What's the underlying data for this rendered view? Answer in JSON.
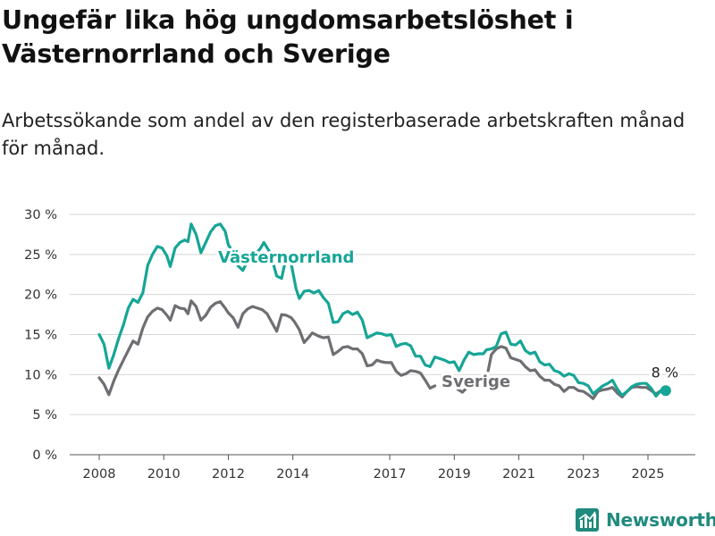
{
  "title": "Ungefär lika hög ungdomsarbetslöshet i Västernorrland och Sverige",
  "subtitle": "Arbetssökande som andel av den registerbaserade arbetskraften månad för månad.",
  "brand": "Newsworthy",
  "colors": {
    "vasternorrland": "#16a596",
    "sverige": "#6e6e73",
    "grid": "#d6d6d6",
    "axis": "#555555",
    "brand": "#1f8a7d"
  },
  "chart_data": {
    "type": "line",
    "yticks": [
      "0 %",
      "5 %",
      "10 %",
      "15 %",
      "20 %",
      "25 %",
      "30 %"
    ],
    "xticks": [
      "2008",
      "2010",
      "2012",
      "2014",
      "2017",
      "2019",
      "2021",
      "2023",
      "2025"
    ],
    "ylim": [
      0,
      30
    ],
    "xlim": [
      2007.5,
      2026.3
    ],
    "grid": true,
    "end_label": "8 %",
    "series": [
      {
        "name": "Västernorrland",
        "label_position": "inline",
        "points": [
          [
            2008.0,
            15.0
          ],
          [
            2008.15,
            13.8
          ],
          [
            2008.3,
            10.8
          ],
          [
            2008.45,
            12.5
          ],
          [
            2008.6,
            14.5
          ],
          [
            2008.75,
            16.2
          ],
          [
            2008.9,
            18.3
          ],
          [
            2009.05,
            19.4
          ],
          [
            2009.2,
            19.0
          ],
          [
            2009.35,
            20.2
          ],
          [
            2009.5,
            23.6
          ],
          [
            2009.65,
            25.0
          ],
          [
            2009.8,
            26.0
          ],
          [
            2009.95,
            25.8
          ],
          [
            2010.1,
            24.8
          ],
          [
            2010.2,
            23.5
          ],
          [
            2010.35,
            25.8
          ],
          [
            2010.5,
            26.5
          ],
          [
            2010.65,
            26.8
          ],
          [
            2010.75,
            26.6
          ],
          [
            2010.85,
            28.8
          ],
          [
            2011.0,
            27.5
          ],
          [
            2011.15,
            25.2
          ],
          [
            2011.3,
            26.5
          ],
          [
            2011.45,
            27.8
          ],
          [
            2011.6,
            28.6
          ],
          [
            2011.75,
            28.8
          ],
          [
            2011.9,
            27.9
          ],
          [
            2012.0,
            26.2
          ],
          [
            2012.15,
            25.3
          ],
          [
            2012.3,
            23.6
          ],
          [
            2012.45,
            23.0
          ],
          [
            2012.6,
            24.2
          ],
          [
            2012.75,
            24.6
          ],
          [
            2012.9,
            25.3
          ],
          [
            2013.0,
            25.8
          ],
          [
            2013.1,
            26.5
          ],
          [
            2013.3,
            25.2
          ],
          [
            2013.5,
            22.3
          ],
          [
            2013.65,
            22.0
          ],
          [
            2013.8,
            24.8
          ],
          [
            2013.95,
            23.8
          ],
          [
            2014.1,
            20.7
          ],
          [
            2014.2,
            19.5
          ],
          [
            2014.35,
            20.4
          ],
          [
            2014.5,
            20.5
          ],
          [
            2014.65,
            20.2
          ],
          [
            2014.8,
            20.5
          ],
          [
            2014.95,
            19.6
          ],
          [
            2015.1,
            18.9
          ],
          [
            2015.25,
            16.5
          ],
          [
            2015.4,
            16.6
          ],
          [
            2015.55,
            17.6
          ],
          [
            2015.7,
            17.9
          ],
          [
            2015.85,
            17.5
          ],
          [
            2016.0,
            17.8
          ],
          [
            2016.15,
            16.8
          ],
          [
            2016.3,
            14.6
          ],
          [
            2016.45,
            14.9
          ],
          [
            2016.6,
            15.2
          ],
          [
            2016.75,
            15.1
          ],
          [
            2016.9,
            14.9
          ],
          [
            2017.05,
            15.0
          ],
          [
            2017.2,
            13.5
          ],
          [
            2017.35,
            13.8
          ],
          [
            2017.5,
            13.9
          ],
          [
            2017.65,
            13.6
          ],
          [
            2017.8,
            12.3
          ],
          [
            2017.95,
            12.3
          ],
          [
            2018.1,
            11.2
          ],
          [
            2018.25,
            11.0
          ],
          [
            2018.4,
            12.2
          ],
          [
            2018.55,
            12.0
          ],
          [
            2018.7,
            11.8
          ],
          [
            2018.85,
            11.5
          ],
          [
            2019.0,
            11.6
          ],
          [
            2019.15,
            10.5
          ],
          [
            2019.3,
            11.8
          ],
          [
            2019.45,
            12.8
          ],
          [
            2019.6,
            12.5
          ],
          [
            2019.75,
            12.6
          ],
          [
            2019.9,
            12.6
          ],
          [
            2020.0,
            13.1
          ],
          [
            2020.15,
            13.2
          ],
          [
            2020.3,
            13.5
          ],
          [
            2020.45,
            15.1
          ],
          [
            2020.6,
            15.3
          ],
          [
            2020.75,
            13.8
          ],
          [
            2020.9,
            13.7
          ],
          [
            2021.05,
            14.2
          ],
          [
            2021.2,
            13.0
          ],
          [
            2021.35,
            12.6
          ],
          [
            2021.5,
            12.8
          ],
          [
            2021.65,
            11.6
          ],
          [
            2021.8,
            11.2
          ],
          [
            2021.95,
            11.3
          ],
          [
            2022.1,
            10.5
          ],
          [
            2022.25,
            10.3
          ],
          [
            2022.4,
            9.8
          ],
          [
            2022.55,
            10.1
          ],
          [
            2022.7,
            9.9
          ],
          [
            2022.85,
            9.0
          ],
          [
            2023.0,
            8.9
          ],
          [
            2023.15,
            8.6
          ],
          [
            2023.3,
            7.6
          ],
          [
            2023.45,
            8.1
          ],
          [
            2023.6,
            8.6
          ],
          [
            2023.75,
            8.9
          ],
          [
            2023.9,
            9.3
          ],
          [
            2024.05,
            8.2
          ],
          [
            2024.2,
            7.4
          ],
          [
            2024.35,
            7.9
          ],
          [
            2024.5,
            8.5
          ],
          [
            2024.65,
            8.8
          ],
          [
            2024.8,
            8.9
          ],
          [
            2024.95,
            8.9
          ],
          [
            2025.1,
            8.3
          ],
          [
            2025.25,
            7.3
          ],
          [
            2025.4,
            8.0
          ],
          [
            2025.55,
            8.0
          ]
        ]
      },
      {
        "name": "Sverige",
        "label_position": "inline",
        "points": [
          [
            2008.0,
            9.6
          ],
          [
            2008.15,
            8.8
          ],
          [
            2008.3,
            7.5
          ],
          [
            2008.45,
            9.2
          ],
          [
            2008.6,
            10.6
          ],
          [
            2008.75,
            11.8
          ],
          [
            2008.9,
            13.0
          ],
          [
            2009.05,
            14.2
          ],
          [
            2009.2,
            13.8
          ],
          [
            2009.35,
            15.8
          ],
          [
            2009.5,
            17.2
          ],
          [
            2009.65,
            17.9
          ],
          [
            2009.8,
            18.3
          ],
          [
            2009.95,
            18.1
          ],
          [
            2010.1,
            17.4
          ],
          [
            2010.2,
            16.8
          ],
          [
            2010.35,
            18.6
          ],
          [
            2010.5,
            18.3
          ],
          [
            2010.65,
            18.2
          ],
          [
            2010.75,
            17.6
          ],
          [
            2010.85,
            19.2
          ],
          [
            2011.0,
            18.5
          ],
          [
            2011.15,
            16.8
          ],
          [
            2011.3,
            17.4
          ],
          [
            2011.45,
            18.4
          ],
          [
            2011.6,
            18.9
          ],
          [
            2011.75,
            19.1
          ],
          [
            2011.9,
            18.3
          ],
          [
            2012.0,
            17.7
          ],
          [
            2012.15,
            17.1
          ],
          [
            2012.3,
            15.9
          ],
          [
            2012.45,
            17.6
          ],
          [
            2012.6,
            18.2
          ],
          [
            2012.75,
            18.5
          ],
          [
            2012.9,
            18.3
          ],
          [
            2013.05,
            18.1
          ],
          [
            2013.2,
            17.6
          ],
          [
            2013.35,
            16.5
          ],
          [
            2013.5,
            15.4
          ],
          [
            2013.65,
            17.5
          ],
          [
            2013.8,
            17.4
          ],
          [
            2013.95,
            17.1
          ],
          [
            2014.05,
            16.6
          ],
          [
            2014.2,
            15.6
          ],
          [
            2014.35,
            14.0
          ],
          [
            2014.5,
            14.7
          ],
          [
            2014.6,
            15.2
          ],
          [
            2014.8,
            14.8
          ],
          [
            2014.95,
            14.6
          ],
          [
            2015.1,
            14.7
          ],
          [
            2015.25,
            12.5
          ],
          [
            2015.4,
            12.9
          ],
          [
            2015.55,
            13.4
          ],
          [
            2015.7,
            13.5
          ],
          [
            2015.85,
            13.2
          ],
          [
            2016.0,
            13.2
          ],
          [
            2016.15,
            12.6
          ],
          [
            2016.3,
            11.1
          ],
          [
            2016.45,
            11.2
          ],
          [
            2016.6,
            11.8
          ],
          [
            2016.75,
            11.6
          ],
          [
            2016.9,
            11.5
          ],
          [
            2017.05,
            11.5
          ],
          [
            2017.2,
            10.4
          ],
          [
            2017.35,
            9.9
          ],
          [
            2017.5,
            10.1
          ],
          [
            2017.65,
            10.5
          ],
          [
            2017.8,
            10.4
          ],
          [
            2017.95,
            10.2
          ],
          [
            2018.1,
            9.3
          ],
          [
            2018.25,
            8.3
          ],
          [
            2018.4,
            8.6
          ],
          [
            2018.6,
            null
          ],
          [
            2019.1,
            8.2
          ],
          [
            2019.25,
            7.8
          ],
          [
            2019.45,
            8.6
          ],
          [
            2019.65,
            null
          ],
          [
            2020.05,
            10.5
          ],
          [
            2020.15,
            12.5
          ],
          [
            2020.3,
            13.2
          ],
          [
            2020.45,
            13.5
          ],
          [
            2020.6,
            13.3
          ],
          [
            2020.75,
            12.1
          ],
          [
            2020.9,
            11.9
          ],
          [
            2021.05,
            11.7
          ],
          [
            2021.2,
            11.0
          ],
          [
            2021.35,
            10.5
          ],
          [
            2021.5,
            10.6
          ],
          [
            2021.65,
            9.8
          ],
          [
            2021.8,
            9.3
          ],
          [
            2021.95,
            9.3
          ],
          [
            2022.1,
            8.8
          ],
          [
            2022.25,
            8.6
          ],
          [
            2022.4,
            7.9
          ],
          [
            2022.55,
            8.4
          ],
          [
            2022.7,
            8.4
          ],
          [
            2022.85,
            8.0
          ],
          [
            2023.0,
            7.9
          ],
          [
            2023.15,
            7.5
          ],
          [
            2023.3,
            7.0
          ],
          [
            2023.45,
            7.9
          ],
          [
            2023.6,
            8.1
          ],
          [
            2023.75,
            8.2
          ],
          [
            2023.9,
            8.4
          ],
          [
            2024.05,
            7.7
          ],
          [
            2024.2,
            7.2
          ],
          [
            2024.35,
            7.9
          ],
          [
            2024.5,
            8.4
          ],
          [
            2024.65,
            8.5
          ],
          [
            2024.8,
            8.4
          ],
          [
            2024.95,
            8.4
          ],
          [
            2025.1,
            8.0
          ],
          [
            2025.25,
            7.6
          ],
          [
            2025.4,
            8.0
          ],
          [
            2025.55,
            8.0
          ]
        ]
      }
    ]
  }
}
